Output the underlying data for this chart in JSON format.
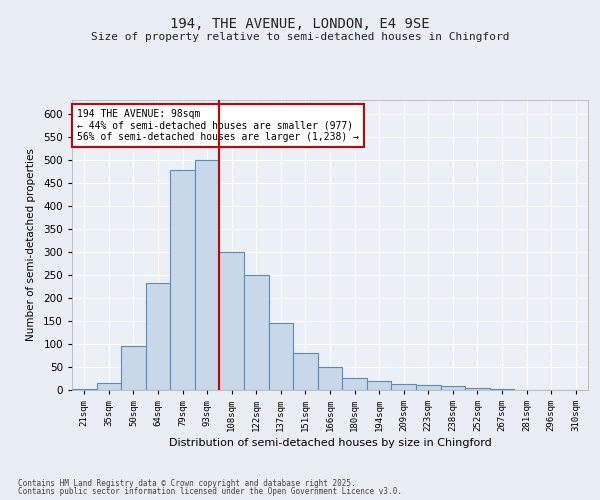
{
  "title1": "194, THE AVENUE, LONDON, E4 9SE",
  "title2": "Size of property relative to semi-detached houses in Chingford",
  "xlabel": "Distribution of semi-detached houses by size in Chingford",
  "ylabel": "Number of semi-detached properties",
  "categories": [
    "21sqm",
    "35sqm",
    "50sqm",
    "64sqm",
    "79sqm",
    "93sqm",
    "108sqm",
    "122sqm",
    "137sqm",
    "151sqm",
    "166sqm",
    "180sqm",
    "194sqm",
    "209sqm",
    "223sqm",
    "238sqm",
    "252sqm",
    "267sqm",
    "281sqm",
    "296sqm",
    "310sqm"
  ],
  "values": [
    3,
    15,
    95,
    233,
    478,
    500,
    300,
    250,
    145,
    80,
    50,
    25,
    20,
    12,
    10,
    8,
    5,
    2,
    1,
    0,
    0
  ],
  "bar_color": "#c8d8e8",
  "bar_edge_color": "#5a8abf",
  "vline_color": "#cc0000",
  "annotation_text": "194 THE AVENUE: 98sqm\n← 44% of semi-detached houses are smaller (977)\n56% of semi-detached houses are larger (1,238) →",
  "annotation_box_color": "#ffffff",
  "annotation_border_color": "#cc0000",
  "ylim": [
    0,
    630
  ],
  "yticks": [
    0,
    50,
    100,
    150,
    200,
    250,
    300,
    350,
    400,
    450,
    500,
    550,
    600
  ],
  "footer1": "Contains HM Land Registry data © Crown copyright and database right 2025.",
  "footer2": "Contains public sector information licensed under the Open Government Licence v3.0.",
  "bg_color": "#e8eef4",
  "plot_bg_color": "#eaf0f6"
}
